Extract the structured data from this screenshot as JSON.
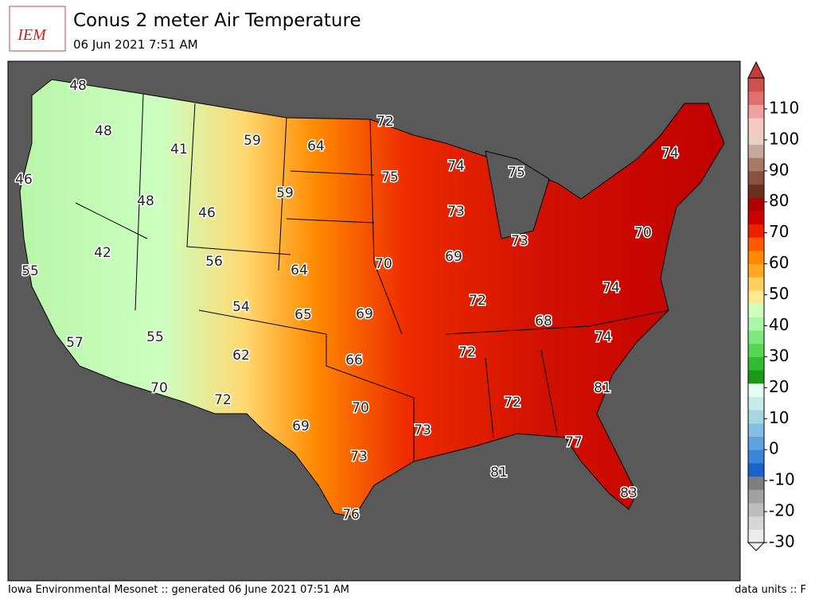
{
  "header": {
    "logo": "IEM",
    "title": "Conus 2 meter Air Temperature",
    "subtitle": "06 Jun 2021 7:51 AM"
  },
  "colorbar": {
    "range": [
      -30,
      120
    ],
    "ticks": [
      -30,
      -20,
      -10,
      0,
      10,
      20,
      30,
      40,
      50,
      60,
      70,
      80,
      90,
      100,
      110
    ],
    "colors": [
      "#ececec",
      "#d6d6d6",
      "#bdbdbd",
      "#a2a2a2",
      "#7f7f7f",
      "#1a63cc",
      "#3a86d8",
      "#5ea3e0",
      "#84bde6",
      "#a6d6e0",
      "#c6ecea",
      "#e6fff4",
      "#189a18",
      "#30bb30",
      "#55d655",
      "#7fe87f",
      "#a8f7a8",
      "#ccffc0",
      "#ffe890",
      "#ffd060",
      "#ffa820",
      "#ff8a00",
      "#ff5a00",
      "#ee2000",
      "#cc0000",
      "#b00000",
      "#6a3020",
      "#8a5040",
      "#a87868",
      "#c8a898",
      "#e8d0c0",
      "#f8c8c0",
      "#f0a0a0",
      "#e07070",
      "#d05050"
    ],
    "extend_min": "#f5f5f5",
    "extend_max": "#c43c3c"
  },
  "labels": [
    48,
    48,
    41,
    59,
    64,
    72,
    75,
    74,
    75,
    74,
    46,
    48,
    46,
    59,
    73,
    70,
    42,
    56,
    64,
    70,
    69,
    73,
    55,
    72,
    74,
    54,
    65,
    69,
    68,
    55,
    74,
    57,
    62,
    66,
    72,
    70,
    81,
    72,
    70,
    72,
    69,
    73,
    77,
    73,
    81,
    83,
    76
  ],
  "footer": {
    "left": "Iowa Environmental Mesonet :: generated 06 June 2021 07:51 AM",
    "right": "data units :: F"
  }
}
